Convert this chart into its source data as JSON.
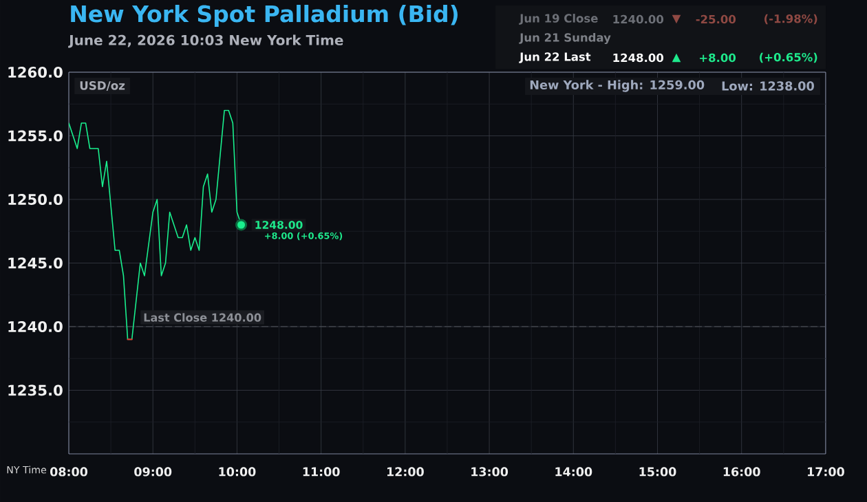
{
  "chart_data": {
    "type": "line",
    "title": "New York Spot Palladium (Bid)",
    "subtitle": "June 22, 2026 10:03 New York Time",
    "xlabel": "NY Time",
    "ylabel": "USD/oz",
    "xlim": [
      8,
      17
    ],
    "ylim": [
      1230,
      1260
    ],
    "xticks": [
      {
        "value": 8,
        "label": "08:00"
      },
      {
        "value": 8.5,
        "label": null
      },
      {
        "value": 9,
        "label": "09:00"
      },
      {
        "value": 9.5,
        "label": null
      },
      {
        "value": 10,
        "label": "10:00"
      },
      {
        "value": 10.5,
        "label": null
      },
      {
        "value": 11,
        "label": "11:00"
      },
      {
        "value": 11.5,
        "label": null
      },
      {
        "value": 12,
        "label": "12:00"
      },
      {
        "value": 12.5,
        "label": null
      },
      {
        "value": 13,
        "label": "13:00"
      },
      {
        "value": 13.5,
        "label": null
      },
      {
        "value": 14,
        "label": "14:00"
      },
      {
        "value": 14.5,
        "label": null
      },
      {
        "value": 15,
        "label": "15:00"
      },
      {
        "value": 15.5,
        "label": null
      },
      {
        "value": 16,
        "label": "16:00"
      },
      {
        "value": 16.5,
        "label": null
      },
      {
        "value": 17,
        "label": "17:00"
      }
    ],
    "yticks": [
      {
        "value": 1232.5,
        "label": null
      },
      {
        "value": 1235,
        "label": "1235.0"
      },
      {
        "value": 1237.5,
        "label": null
      },
      {
        "value": 1240,
        "label": "1240.0"
      },
      {
        "value": 1242.5,
        "label": null
      },
      {
        "value": 1245,
        "label": "1245.0"
      },
      {
        "value": 1247.5,
        "label": null
      },
      {
        "value": 1250,
        "label": "1250.0"
      },
      {
        "value": 1252.5,
        "label": null
      },
      {
        "value": 1255,
        "label": "1255.0"
      },
      {
        "value": 1257.5,
        "label": null
      },
      {
        "value": 1260,
        "label": "1260.0"
      }
    ],
    "grid": true,
    "series": [
      {
        "color": "#19f08e",
        "x": [
          8.0,
          8.1,
          8.15,
          8.2,
          8.25,
          8.35,
          8.4,
          8.45,
          8.55,
          8.6,
          8.65,
          8.7,
          8.75,
          8.85,
          8.9,
          9.0,
          9.05,
          9.1,
          9.15,
          9.2,
          9.3,
          9.35,
          9.4,
          9.45,
          9.5,
          9.55,
          9.6,
          9.65,
          9.7,
          9.75,
          9.85,
          9.9,
          9.95,
          10.0,
          10.05
        ],
        "values": [
          1256,
          1254,
          1256,
          1256,
          1254,
          1254,
          1251,
          1253,
          1246,
          1246,
          1244,
          1239,
          1239,
          1245,
          1244,
          1249,
          1250,
          1244,
          1245,
          1249,
          1247,
          1247,
          1248,
          1246,
          1247,
          1246,
          1251,
          1252,
          1249,
          1250,
          1257,
          1257,
          1256,
          1249,
          1248
        ]
      },
      {
        "color": "#e8322c",
        "x": [
          8.7,
          8.75
        ],
        "values": [
          1239,
          1239
        ]
      },
      {
        "type": "scatter",
        "color": "#19f08e",
        "marker": "circle",
        "x": [
          10.05
        ],
        "values": [
          1248
        ]
      }
    ],
    "ref_lines": [
      {
        "axis": "y",
        "value": 1240,
        "label": "Last Close 1240.00",
        "color": "#55585f",
        "line_style": "dashed"
      }
    ],
    "annotations": [
      "Jun 19 Close",
      "1240.00",
      "▼",
      "-25.00",
      "(-1.98%)",
      "Jun 21 Sunday",
      "Jun 22 Last",
      "1248.00",
      "▲",
      "+8.00",
      "(+0.65%)",
      "New York - High: 1259.00",
      "Low: 1238.00",
      {
        "text": "1248.00",
        "x": 10.05,
        "y": 1248
      },
      "+8.00 (+0.65%)"
    ]
  }
}
